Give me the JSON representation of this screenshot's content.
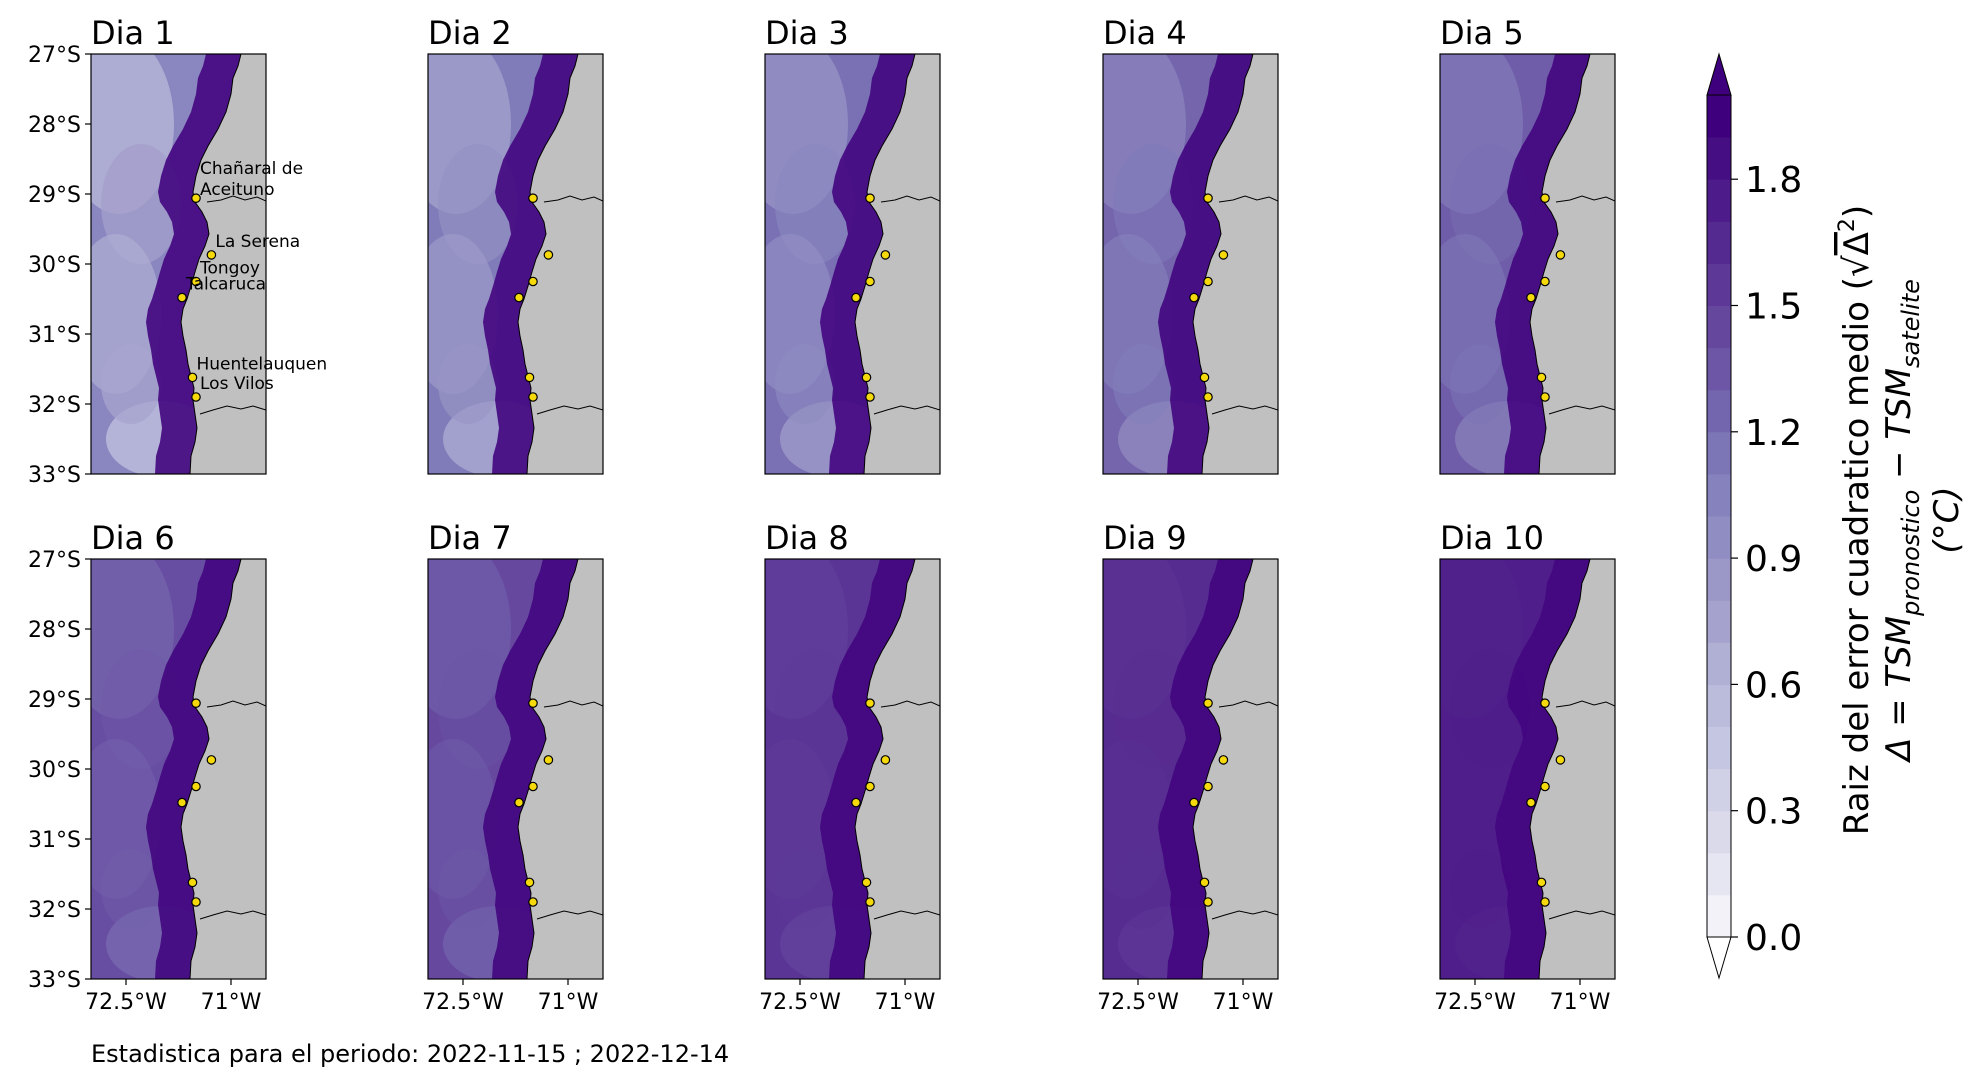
{
  "figure": {
    "footer": "Estadistica para el periodo: 2022-11-15 ; 2022-12-14"
  },
  "map": {
    "lat_ticks": [
      "27°S",
      "28°S",
      "29°S",
      "30°S",
      "31°S",
      "32°S",
      "33°S"
    ],
    "lon_ticks": [
      "72.5°W",
      "71°W"
    ],
    "lat_range": [
      -33,
      -27
    ],
    "lon_range": [
      -73.0,
      -70.5
    ],
    "land_color": "#c0c0c0",
    "ocean_colormap": "Purples",
    "stations": [
      {
        "label": "Chañaral de\nAceituno",
        "lon": -71.5,
        "lat": -29.06
      },
      {
        "label": "La Serena",
        "lon": -71.28,
        "lat": -29.87
      },
      {
        "label": "Tongoy",
        "lon": -71.5,
        "lat": -30.25
      },
      {
        "label": "Talcaruca",
        "lon": -71.7,
        "lat": -30.48
      },
      {
        "label": "Huentelauquen",
        "lon": -71.55,
        "lat": -31.62
      },
      {
        "label": "Los Vilos",
        "lon": -71.5,
        "lat": -31.9
      }
    ]
  },
  "panels": [
    {
      "title": "Dia 1",
      "intensity": 0.15,
      "show_lat_ticks": true,
      "show_lon_ticks": false,
      "show_station_labels": true
    },
    {
      "title": "Dia 2",
      "intensity": 0.25,
      "show_lat_ticks": false,
      "show_lon_ticks": false,
      "show_station_labels": false
    },
    {
      "title": "Dia 3",
      "intensity": 0.32,
      "show_lat_ticks": false,
      "show_lon_ticks": false,
      "show_station_labels": false
    },
    {
      "title": "Dia 4",
      "intensity": 0.4,
      "show_lat_ticks": false,
      "show_lon_ticks": false,
      "show_station_labels": false
    },
    {
      "title": "Dia 5",
      "intensity": 0.45,
      "show_lat_ticks": false,
      "show_lon_ticks": false,
      "show_station_labels": false
    },
    {
      "title": "Dia 6",
      "intensity": 0.55,
      "show_lat_ticks": true,
      "show_lon_ticks": true,
      "show_station_labels": false
    },
    {
      "title": "Dia 7",
      "intensity": 0.58,
      "show_lat_ticks": false,
      "show_lon_ticks": true,
      "show_station_labels": false
    },
    {
      "title": "Dia 8",
      "intensity": 0.72,
      "show_lat_ticks": false,
      "show_lon_ticks": true,
      "show_station_labels": false
    },
    {
      "title": "Dia 9",
      "intensity": 0.78,
      "show_lat_ticks": false,
      "show_lon_ticks": true,
      "show_station_labels": false
    },
    {
      "title": "Dia 10",
      "intensity": 0.88,
      "show_lat_ticks": false,
      "show_lon_ticks": true,
      "show_station_labels": false
    }
  ],
  "colorbar": {
    "ticks": [
      "0.0",
      "0.3",
      "0.6",
      "0.9",
      "1.2",
      "1.5",
      "1.8"
    ],
    "tick_values": [
      0.0,
      0.3,
      0.6,
      0.9,
      1.2,
      1.5,
      1.8
    ],
    "range": [
      0.0,
      2.0
    ],
    "levels": 20,
    "extend": "both",
    "label_line1_text": "Raiz del error cuadratico medio (",
    "label_line1_math": "√",
    "label_line1_delta": "Δ",
    "label_line1_exp": "2",
    "label_line1_close": ")",
    "label_line2_prefix": "Δ = TSM",
    "label_line2_sub1": "pronostico",
    "label_line2_minus": " − TSM",
    "label_line2_sub2": "satelite",
    "label_line3": "(°C)"
  }
}
